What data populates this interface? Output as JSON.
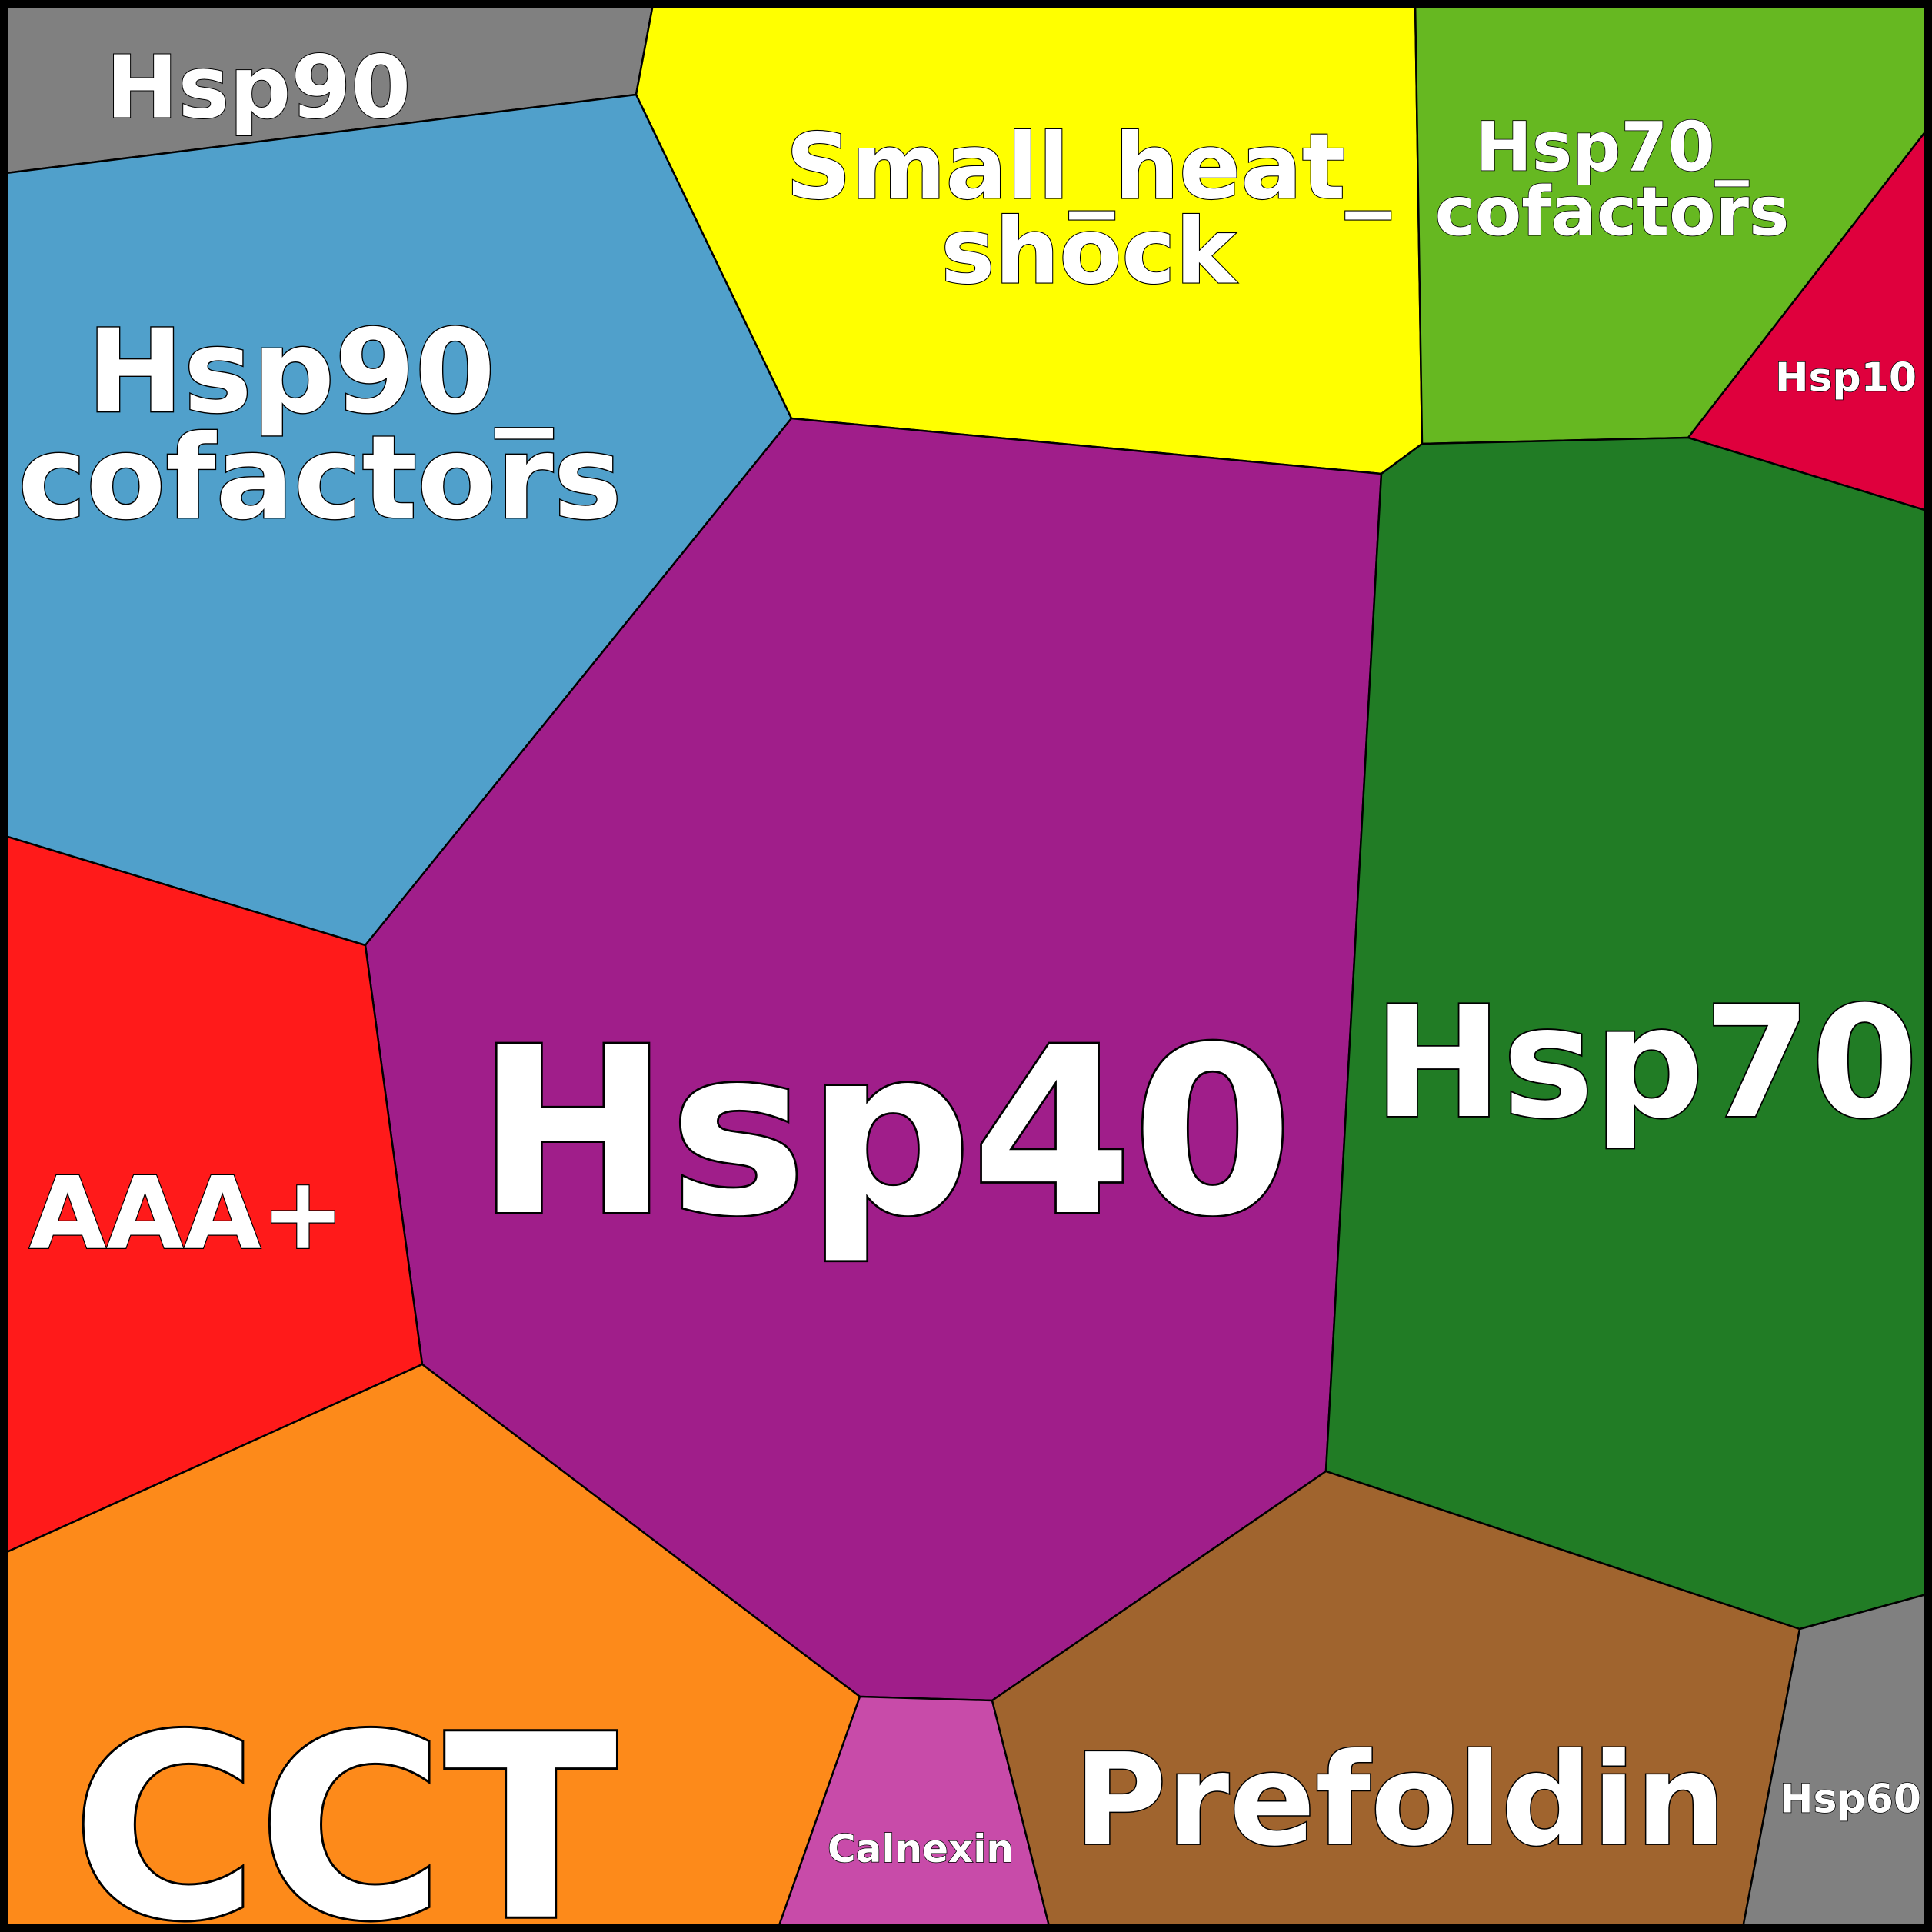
{
  "diagram": {
    "type": "voronoi-treemap",
    "cells": [
      {
        "id": "hsp90",
        "label_lines": [
          "Hsp90"
        ],
        "color": "#808080"
      },
      {
        "id": "small-heat-shock",
        "label_lines": [
          "Small_heat_",
          "shock"
        ],
        "color": "#ffff00"
      },
      {
        "id": "hsp70-cofactors",
        "label_lines": [
          "Hsp70_",
          "cofactors"
        ],
        "color": "#66b821"
      },
      {
        "id": "hsp10",
        "label_lines": [
          "Hsp10"
        ],
        "color": "#df003d"
      },
      {
        "id": "hsp90-cofactors",
        "label_lines": [
          "Hsp90_",
          "cofactors"
        ],
        "color": "#50a0cb"
      },
      {
        "id": "hsp40",
        "label_lines": [
          "Hsp40"
        ],
        "color": "#a01e8a"
      },
      {
        "id": "hsp70",
        "label_lines": [
          "Hsp70"
        ],
        "color": "#217c25"
      },
      {
        "id": "aaa-plus",
        "label_lines": [
          "AAA+"
        ],
        "color": "#ff1a1a"
      },
      {
        "id": "cct",
        "label_lines": [
          "CCT"
        ],
        "color": "#fd8a1a"
      },
      {
        "id": "calnexin",
        "label_lines": [
          "Calnexin"
        ],
        "color": "#c84ba9"
      },
      {
        "id": "prefoldin",
        "label_lines": [
          "Prefoldin"
        ],
        "color": "#a0642e"
      },
      {
        "id": "hsp60",
        "label_lines": [
          "Hsp60"
        ],
        "color": "#808080"
      }
    ],
    "border_color": "#000000"
  }
}
